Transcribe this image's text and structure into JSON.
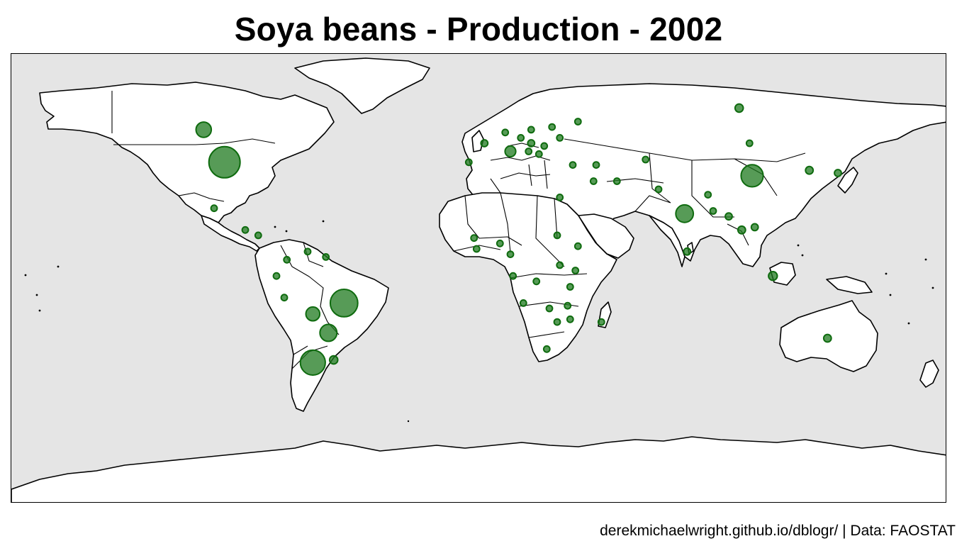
{
  "title": "Soya beans - Production - 2002",
  "caption": "derekmichaelwright.github.io/dblogr/ | Data: FAOSTAT",
  "colors": {
    "ocean": "#e5e5e5",
    "land": "#ffffff",
    "bubble_fill": "#1f7a1f",
    "bubble_stroke": "#0f6b0f",
    "outline": "#000000"
  },
  "map": {
    "projection": "equirectangular",
    "symbol": "proportional-bubble",
    "bubble_opacity": 0.75,
    "bubbles": [
      {
        "lon": -98,
        "lat": 40,
        "relative_size": 1.0
      },
      {
        "lon": -52,
        "lat": -12,
        "relative_size": 0.78
      },
      {
        "lon": -64,
        "lat": -34,
        "relative_size": 0.64
      },
      {
        "lon": 105,
        "lat": 35,
        "relative_size": 0.5
      },
      {
        "lon": 79,
        "lat": 21,
        "relative_size": 0.32
      },
      {
        "lon": -58,
        "lat": -23,
        "relative_size": 0.3
      },
      {
        "lon": -106,
        "lat": 52,
        "relative_size": 0.24
      },
      {
        "lon": -64,
        "lat": -16,
        "relative_size": 0.2
      },
      {
        "lon": 12,
        "lat": 44,
        "relative_size": 0.12
      },
      {
        "lon": -56,
        "lat": -33,
        "relative_size": 0.07
      },
      {
        "lon": 100,
        "lat": 60,
        "relative_size": 0.07
      },
      {
        "lon": 134,
        "lat": -25,
        "relative_size": 0.06
      },
      {
        "lon": 113,
        "lat": -2,
        "relative_size": 0.08
      },
      {
        "lon": 101,
        "lat": 15,
        "relative_size": 0.06
      },
      {
        "lon": 106,
        "lat": 16,
        "relative_size": 0.05
      },
      {
        "lon": 127,
        "lat": 37,
        "relative_size": 0.06
      },
      {
        "lon": 138,
        "lat": 36,
        "relative_size": 0.05
      },
      {
        "lon": 80,
        "lat": 7,
        "relative_size": 0.05
      },
      {
        "lon": 88,
        "lat": 28,
        "relative_size": 0.04
      },
      {
        "lon": 90,
        "lat": 22,
        "relative_size": 0.04
      },
      {
        "lon": 96,
        "lat": 20,
        "relative_size": 0.05
      },
      {
        "lon": 104,
        "lat": 47,
        "relative_size": 0.04
      },
      {
        "lon": 69,
        "lat": 30,
        "relative_size": 0.04
      },
      {
        "lon": 64,
        "lat": 41,
        "relative_size": 0.04
      },
      {
        "lon": 45,
        "lat": 39,
        "relative_size": 0.04
      },
      {
        "lon": 53,
        "lat": 33,
        "relative_size": 0.04
      },
      {
        "lon": 31,
        "lat": 27,
        "relative_size": 0.04
      },
      {
        "lon": 36,
        "lat": 39,
        "relative_size": 0.04
      },
      {
        "lon": 44,
        "lat": 33,
        "relative_size": 0.04
      },
      {
        "lon": 31,
        "lat": 49,
        "relative_size": 0.04
      },
      {
        "lon": 38,
        "lat": 55,
        "relative_size": 0.04
      },
      {
        "lon": 28,
        "lat": 53,
        "relative_size": 0.04
      },
      {
        "lon": 20,
        "lat": 47,
        "relative_size": 0.05
      },
      {
        "lon": 25,
        "lat": 46,
        "relative_size": 0.04
      },
      {
        "lon": 16,
        "lat": 49,
        "relative_size": 0.04
      },
      {
        "lon": 10,
        "lat": 51,
        "relative_size": 0.04
      },
      {
        "lon": 2,
        "lat": 47,
        "relative_size": 0.05
      },
      {
        "lon": -4,
        "lat": 40,
        "relative_size": 0.04
      },
      {
        "lon": 20,
        "lat": 52,
        "relative_size": 0.04
      },
      {
        "lon": 23,
        "lat": 43,
        "relative_size": 0.04
      },
      {
        "lon": 19,
        "lat": 44,
        "relative_size": 0.04
      },
      {
        "lon": 8,
        "lat": 10,
        "relative_size": 0.04
      },
      {
        "lon": -1,
        "lat": 8,
        "relative_size": 0.04
      },
      {
        "lon": -2,
        "lat": 12,
        "relative_size": 0.04
      },
      {
        "lon": 12,
        "lat": 6,
        "relative_size": 0.04
      },
      {
        "lon": 30,
        "lat": 13,
        "relative_size": 0.04
      },
      {
        "lon": 38,
        "lat": 9,
        "relative_size": 0.04
      },
      {
        "lon": 31,
        "lat": 2,
        "relative_size": 0.04
      },
      {
        "lon": 37,
        "lat": 0,
        "relative_size": 0.04
      },
      {
        "lon": 35,
        "lat": -6,
        "relative_size": 0.04
      },
      {
        "lon": 22,
        "lat": -4,
        "relative_size": 0.04
      },
      {
        "lon": 13,
        "lat": -2,
        "relative_size": 0.04
      },
      {
        "lon": 17,
        "lat": -12,
        "relative_size": 0.04
      },
      {
        "lon": 27,
        "lat": -14,
        "relative_size": 0.04
      },
      {
        "lon": 34,
        "lat": -13,
        "relative_size": 0.04
      },
      {
        "lon": 30,
        "lat": -19,
        "relative_size": 0.04
      },
      {
        "lon": 26,
        "lat": -29,
        "relative_size": 0.04
      },
      {
        "lon": 35,
        "lat": -18,
        "relative_size": 0.04
      },
      {
        "lon": 47,
        "lat": -19,
        "relative_size": 0.04
      },
      {
        "lon": -102,
        "lat": 23,
        "relative_size": 0.04
      },
      {
        "lon": -90,
        "lat": 15,
        "relative_size": 0.04
      },
      {
        "lon": -85,
        "lat": 13,
        "relative_size": 0.04
      },
      {
        "lon": -74,
        "lat": 4,
        "relative_size": 0.04
      },
      {
        "lon": -66,
        "lat": 7,
        "relative_size": 0.04
      },
      {
        "lon": -78,
        "lat": -2,
        "relative_size": 0.04
      },
      {
        "lon": -75,
        "lat": -10,
        "relative_size": 0.04
      },
      {
        "lon": -59,
        "lat": 5,
        "relative_size": 0.04
      }
    ]
  }
}
